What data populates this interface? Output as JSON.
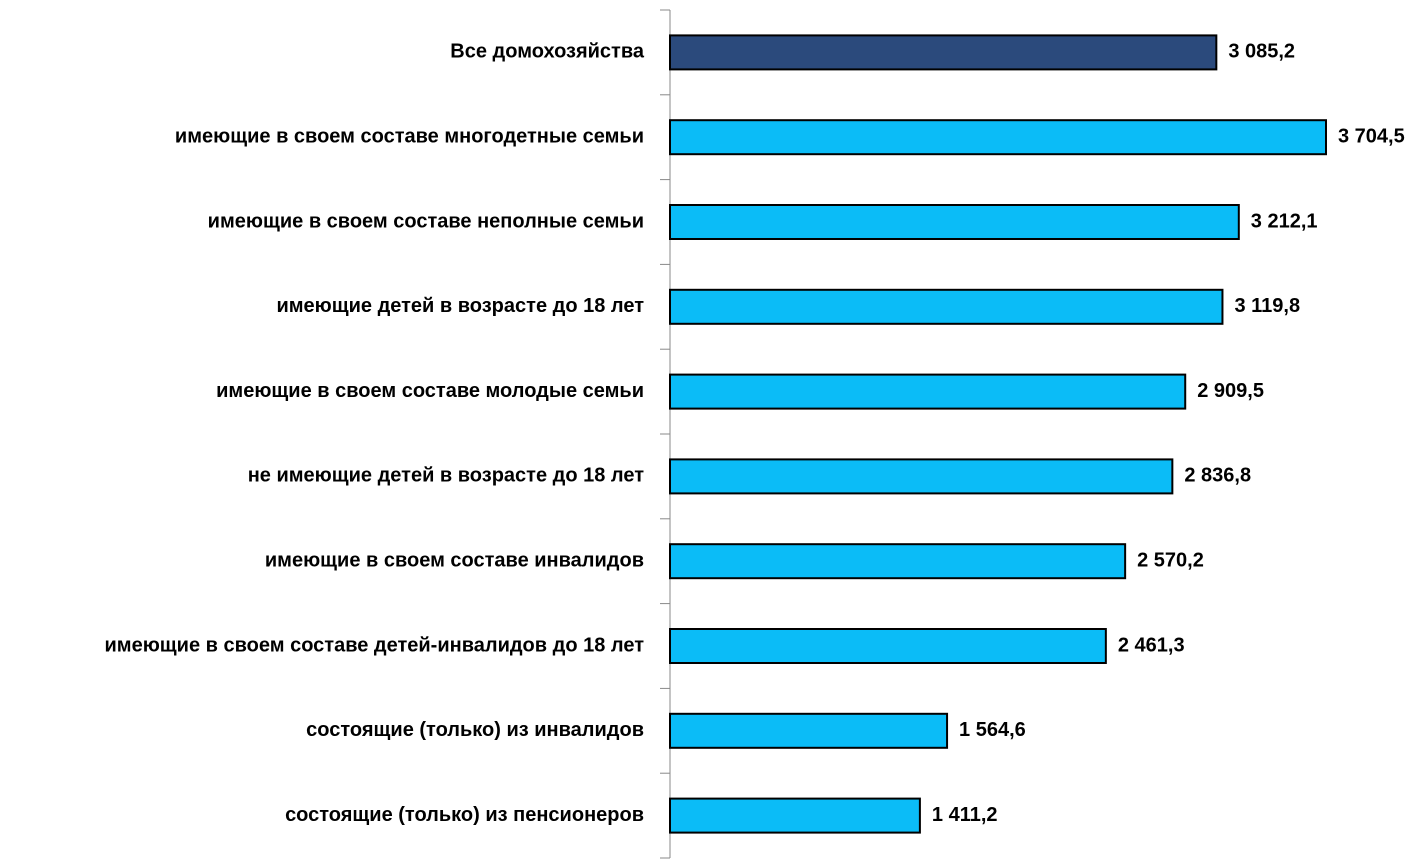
{
  "chart_data": {
    "type": "barh",
    "categories": [
      "Все домохозяйства",
      "имеющие в своем составе многодетные семьи",
      "имеющие в своем составе неполные семьи",
      "имеющие детей в возрасте до 18 лет",
      "имеющие в своем составе молодые семьи",
      "не имеющие детей в возрасте до 18 лет",
      "имеющие в своем составе инвалидов",
      "имеющие в своем составе детей-инвалидов до 18 лет",
      "состоящие (только) из инвалидов",
      "состоящие (только) из пенсионеров"
    ],
    "values": [
      3085.2,
      3704.5,
      3212.1,
      3119.8,
      2909.5,
      2836.8,
      2570.2,
      2461.3,
      1564.6,
      1411.2
    ],
    "value_labels": [
      "3 085,2",
      "3 704,5",
      "3 212,1",
      "3 119,8",
      "2 909,5",
      "2 836,8",
      "2 570,2",
      "2 461,3",
      "1 564,6",
      "1 411,2"
    ],
    "colors": [
      "#2b4a7c",
      "#0bbcf7",
      "#0bbcf7",
      "#0bbcf7",
      "#0bbcf7",
      "#0bbcf7",
      "#0bbcf7",
      "#0bbcf7",
      "#0bbcf7",
      "#0bbcf7"
    ]
  }
}
